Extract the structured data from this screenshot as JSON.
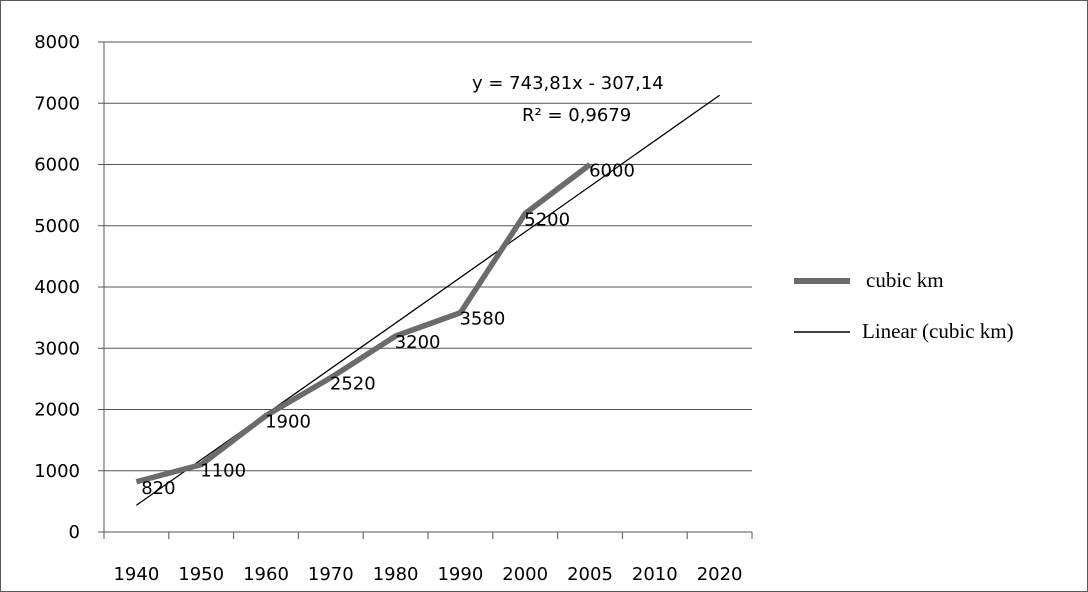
{
  "chart_data": {
    "type": "line",
    "x": [
      "1940",
      "1950",
      "1960",
      "1970",
      "1980",
      "1990",
      "2000",
      "2005",
      "2010",
      "2020"
    ],
    "series": [
      {
        "name": "cubic km",
        "color": "#6b6b6b",
        "points": [
          {
            "x": "1940",
            "y": 820
          },
          {
            "x": "1950",
            "y": 1100
          },
          {
            "x": "1960",
            "y": 1900
          },
          {
            "x": "1970",
            "y": 2520
          },
          {
            "x": "1980",
            "y": 3200
          },
          {
            "x": "1990",
            "y": 3580
          },
          {
            "x": "2000",
            "y": 5200
          },
          {
            "x": "2005",
            "y": 6000
          }
        ],
        "labels": [
          "820",
          "1100",
          "1900",
          "2520",
          "3200",
          "3580",
          "5200",
          "6000"
        ]
      },
      {
        "name": "Linear (cubic km)",
        "color": "#000000",
        "trendline": {
          "slope": 743.81,
          "intercept": -307.14,
          "x_range": [
            "1940",
            "2020"
          ]
        }
      }
    ],
    "y_ticks": [
      "0",
      "1000",
      "2000",
      "3000",
      "4000",
      "5000",
      "6000",
      "7000",
      "8000"
    ],
    "ylim": [
      0,
      8000
    ],
    "equation": "y = 743,81x - 307,14",
    "r_squared": "R² = 0,9679",
    "grid": "horizontal",
    "legend_position": "right"
  },
  "legend": {
    "series_label": "cubic km",
    "trend_label": "Linear (cubic km)"
  }
}
